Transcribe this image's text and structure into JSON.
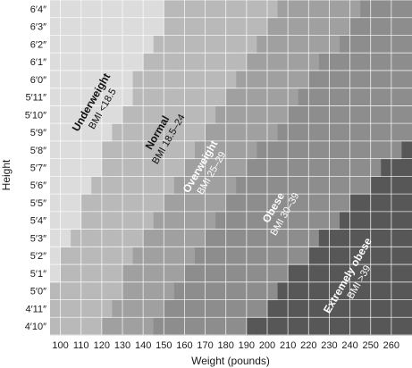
{
  "chart_data": {
    "type": "heatmap",
    "title": "",
    "xlabel": "Weight (pounds)",
    "ylabel": "Height",
    "x_ticks": [
      100,
      110,
      120,
      130,
      140,
      150,
      160,
      170,
      180,
      190,
      200,
      210,
      220,
      230,
      240,
      250,
      260
    ],
    "y_ticks": [
      "4′10″",
      "4′11″",
      "5′0″",
      "5′1″",
      "5′2″",
      "5′3″",
      "5′4″",
      "5′5″",
      "5′6″",
      "5′7″",
      "5′8″",
      "5′9″",
      "5′10″",
      "5′11″",
      "6′0″",
      "6′1″",
      "6′2″",
      "6′3″",
      "6′4″"
    ],
    "heights_in": [
      58,
      59,
      60,
      61,
      62,
      63,
      64,
      65,
      66,
      67,
      68,
      69,
      70,
      71,
      72,
      73,
      74,
      75,
      76
    ],
    "weight_range": [
      95,
      270
    ],
    "cell_width_lb": 5,
    "grid": true,
    "zones": [
      {
        "name": "Underweight",
        "bmi": "BMI <18.5",
        "min_bmi": 0,
        "color": "#dcdcdc",
        "text_color": "#111111"
      },
      {
        "name": "Normal",
        "bmi": "BMI 18.5–24",
        "min_bmi": 18.5,
        "color": "#b9b9b9",
        "text_color": "#111111"
      },
      {
        "name": "Overweight",
        "bmi": "BMI 25–29",
        "min_bmi": 25,
        "color": "#a0a0a0",
        "text_color": "#ffffff"
      },
      {
        "name": "Obese",
        "bmi": "BMI 30–39",
        "min_bmi": 30,
        "color": "#8d8d8d",
        "text_color": "#ffffff"
      },
      {
        "name": "Extremely obese",
        "bmi": "BMI >39",
        "min_bmi": 40,
        "color": "#575757",
        "text_color": "#ffffff"
      }
    ]
  }
}
